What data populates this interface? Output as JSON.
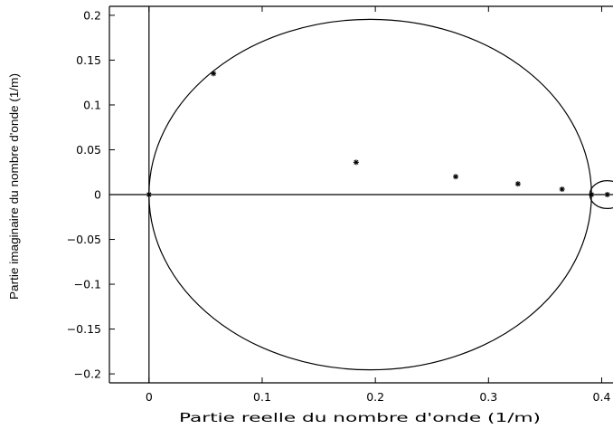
{
  "chart_data": {
    "type": "scatter",
    "title": "",
    "xlabel": "Partie reelle du nombre d'onde (1/m)",
    "ylabel": "Partie imaginaire du nombre d'onde (1/m)",
    "xlim": [
      -0.035,
      0.41
    ],
    "ylim": [
      -0.21,
      0.21
    ],
    "x_ticks": [
      0,
      0.1,
      0.2,
      0.3,
      0.4
    ],
    "x_tick_labels": [
      "0",
      "0.1",
      "0.2",
      "0.3",
      "0.4"
    ],
    "y_ticks": [
      0.2,
      0.15,
      0.1,
      0.05,
      0,
      -0.05,
      -0.1,
      -0.15,
      -0.2
    ],
    "y_tick_labels": [
      "0.2",
      "0.15",
      "0.1",
      "0.05",
      "0",
      "−0.05",
      "−0.1",
      "−0.15",
      "−0.2"
    ],
    "grid": false,
    "series": [
      {
        "marker": "asterisk",
        "x": [
          0.0,
          0.057,
          0.183,
          0.271,
          0.326,
          0.365,
          0.391,
          0.405
        ],
        "y": [
          0.0,
          0.135,
          0.036,
          0.02,
          0.012,
          0.006,
          0.0,
          0.0
        ]
      }
    ],
    "reference_lines": {
      "vertical_at_x": 0,
      "horizontal_at_y": 0
    },
    "circles": [
      {
        "cx": 0.1955,
        "cy": 0.0,
        "r": 0.1955
      },
      {
        "cx": 0.405,
        "cy": 0.0,
        "r": 0.0155
      }
    ],
    "colors": {
      "line": "#000000",
      "background": "#ffffff"
    }
  }
}
